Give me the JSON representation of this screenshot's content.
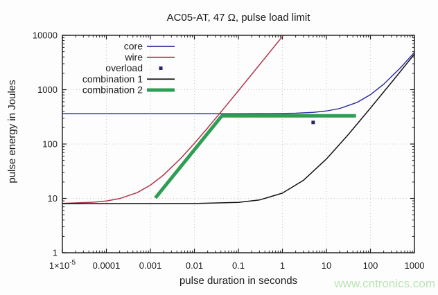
{
  "title": "AC05-AT, 47 Ω, pulse load limit",
  "watermark": "www.cntronics.com",
  "colors": {
    "frame": "#1a1a1a",
    "grid": "#c9c9c9",
    "text": "#1a1a1a",
    "watermark": "#b9e5b4",
    "background": "#fdfdfd"
  },
  "chart_data": {
    "type": "line",
    "title": "AC05-AT, 47 Ω, pulse load limit",
    "xlabel": "pulse duration in seconds",
    "ylabel": "pulse energy in Joules",
    "x_scale": "log",
    "y_scale": "log",
    "xlim": [
      1e-05,
      1000
    ],
    "ylim": [
      1,
      10000
    ],
    "grid": "dotted-decades",
    "legend_position": "top-left-inside",
    "xticks": [
      {
        "value": 1e-05,
        "label": "1×10^-5"
      },
      {
        "value": 0.0001,
        "label": "0.0001"
      },
      {
        "value": 0.001,
        "label": "0.001"
      },
      {
        "value": 0.01,
        "label": "0.01"
      },
      {
        "value": 0.1,
        "label": "0.1"
      },
      {
        "value": 1,
        "label": "1"
      },
      {
        "value": 10,
        "label": "10"
      },
      {
        "value": 100,
        "label": "100"
      },
      {
        "value": 1000,
        "label": "1000"
      }
    ],
    "yticks": [
      {
        "value": 1,
        "label": "1"
      },
      {
        "value": 10,
        "label": "10"
      },
      {
        "value": 100,
        "label": "100"
      },
      {
        "value": 1000,
        "label": "1000"
      },
      {
        "value": 10000,
        "label": "10000"
      }
    ],
    "series": [
      {
        "name": "core",
        "type": "line",
        "color": "#3232a0",
        "width": 1.5,
        "points": [
          [
            1e-05,
            360
          ],
          [
            0.001,
            360
          ],
          [
            0.1,
            360.5
          ],
          [
            1,
            364.5
          ],
          [
            2,
            369
          ],
          [
            5,
            382
          ],
          [
            10,
            405
          ],
          [
            20,
            450
          ],
          [
            50,
            585
          ],
          [
            100,
            810
          ],
          [
            200,
            1260
          ],
          [
            500,
            2610
          ],
          [
            1000,
            4860
          ]
        ]
      },
      {
        "name": "wire",
        "type": "line",
        "color": "#b03448",
        "width": 1.5,
        "points": [
          [
            1e-05,
            8.1
          ],
          [
            5e-05,
            8.5
          ],
          [
            0.0001,
            8.95
          ],
          [
            0.0002,
            9.9
          ],
          [
            0.0005,
            12.75
          ],
          [
            0.001,
            17.5
          ],
          [
            0.002,
            27
          ],
          [
            0.005,
            55.5
          ],
          [
            0.01,
            103
          ],
          [
            0.02,
            198
          ],
          [
            0.05,
            483
          ],
          [
            0.1,
            958
          ],
          [
            0.2,
            1908
          ],
          [
            0.5,
            4758
          ],
          [
            1.05,
            10000
          ]
        ]
      },
      {
        "name": "overload",
        "type": "marker",
        "marker": "square",
        "color": "#25256b",
        "size": 5,
        "points": [
          [
            5,
            250
          ]
        ]
      },
      {
        "name": "combination 1",
        "type": "line",
        "color": "#111111",
        "width": 1.5,
        "points": [
          [
            1e-05,
            8
          ],
          [
            0.01,
            8.05
          ],
          [
            0.1,
            8.45
          ],
          [
            0.3,
            9.35
          ],
          [
            1,
            12.5
          ],
          [
            3,
            21.5
          ],
          [
            10,
            53
          ],
          [
            30,
            143
          ],
          [
            100,
            458
          ],
          [
            300,
            1358
          ],
          [
            1000,
            4508
          ]
        ]
      },
      {
        "name": "combination 2",
        "type": "line",
        "color": "#2f9e55",
        "width": 5,
        "points": [
          [
            0.0013,
            10.2
          ],
          [
            0.042,
            330
          ],
          [
            47,
            330
          ]
        ]
      }
    ]
  }
}
